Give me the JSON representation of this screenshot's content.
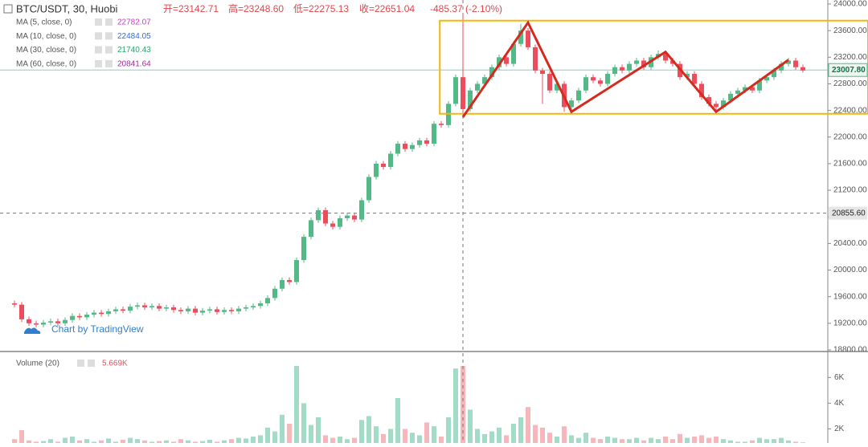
{
  "chart_data": {
    "type": "candlestick",
    "symbol": "BTC/USDT, 30, Huobi",
    "ohlc_legend": [
      "开=23142.71",
      "高=23248.60",
      "低=22275.13",
      "收=22651.04",
      "-485.37 (-2.10%)"
    ],
    "indicators": [
      {
        "name": "MA (5, close, 0)",
        "value_label": "22782.07",
        "color": "#c23fc0"
      },
      {
        "name": "MA (10, close, 0)",
        "value_label": "22484.05",
        "color": "#2f6fd6"
      },
      {
        "name": "MA (30, close, 0)",
        "value_label": "21740.43",
        "color": "#2ea66f"
      },
      {
        "name": "MA (60, close, 0)",
        "value_label": "20841.64",
        "color": "#9c2e9c"
      }
    ],
    "watermark": "Chart by TradingView",
    "up_color": "#53b987",
    "down_color": "#eb4d5c",
    "ohlc": [
      [
        19500,
        19540,
        19440,
        19480
      ],
      [
        19480,
        19520,
        19220,
        19260
      ],
      [
        19260,
        19300,
        19160,
        19200
      ],
      [
        19200,
        19240,
        19140,
        19180
      ],
      [
        19180,
        19250,
        19140,
        19210
      ],
      [
        19210,
        19270,
        19170,
        19230
      ],
      [
        19230,
        19270,
        19160,
        19200
      ],
      [
        19200,
        19290,
        19160,
        19250
      ],
      [
        19250,
        19350,
        19210,
        19310
      ],
      [
        19310,
        19350,
        19250,
        19290
      ],
      [
        19290,
        19370,
        19250,
        19330
      ],
      [
        19330,
        19400,
        19290,
        19360
      ],
      [
        19360,
        19400,
        19300,
        19340
      ],
      [
        19340,
        19420,
        19300,
        19380
      ],
      [
        19380,
        19450,
        19340,
        19410
      ],
      [
        19410,
        19450,
        19350,
        19390
      ],
      [
        19390,
        19490,
        19350,
        19450
      ],
      [
        19450,
        19510,
        19410,
        19470
      ],
      [
        19470,
        19510,
        19400,
        19440
      ],
      [
        19440,
        19500,
        19400,
        19460
      ],
      [
        19460,
        19500,
        19380,
        19420
      ],
      [
        19420,
        19480,
        19380,
        19440
      ],
      [
        19440,
        19480,
        19360,
        19400
      ],
      [
        19400,
        19440,
        19340,
        19380
      ],
      [
        19380,
        19460,
        19340,
        19420
      ],
      [
        19420,
        19460,
        19320,
        19360
      ],
      [
        19360,
        19430,
        19320,
        19390
      ],
      [
        19390,
        19450,
        19350,
        19410
      ],
      [
        19410,
        19450,
        19330,
        19370
      ],
      [
        19370,
        19440,
        19330,
        19400
      ],
      [
        19400,
        19440,
        19340,
        19380
      ],
      [
        19380,
        19460,
        19340,
        19420
      ],
      [
        19420,
        19480,
        19380,
        19440
      ],
      [
        19440,
        19500,
        19400,
        19460
      ],
      [
        19460,
        19540,
        19420,
        19500
      ],
      [
        19500,
        19620,
        19460,
        19580
      ],
      [
        19580,
        19760,
        19540,
        19720
      ],
      [
        19720,
        19890,
        19680,
        19850
      ],
      [
        19850,
        19890,
        19780,
        19820
      ],
      [
        19820,
        20190,
        19780,
        20150
      ],
      [
        20150,
        20540,
        20110,
        20500
      ],
      [
        20500,
        20790,
        20460,
        20750
      ],
      [
        20750,
        20940,
        20710,
        20900
      ],
      [
        20900,
        20940,
        20660,
        20700
      ],
      [
        20700,
        20740,
        20610,
        20650
      ],
      [
        20650,
        20820,
        20610,
        20780
      ],
      [
        20780,
        20860,
        20740,
        20820
      ],
      [
        20820,
        20860,
        20720,
        20760
      ],
      [
        20760,
        21090,
        20720,
        21050
      ],
      [
        21050,
        21440,
        21010,
        21400
      ],
      [
        21400,
        21640,
        21360,
        21600
      ],
      [
        21600,
        21640,
        21510,
        21550
      ],
      [
        21550,
        21790,
        21510,
        21750
      ],
      [
        21750,
        21940,
        21710,
        21900
      ],
      [
        21900,
        21940,
        21780,
        21820
      ],
      [
        21820,
        21920,
        21780,
        21880
      ],
      [
        21880,
        21990,
        21840,
        21950
      ],
      [
        21950,
        21990,
        21860,
        21900
      ],
      [
        21900,
        22240,
        21860,
        22200
      ],
      [
        22200,
        22240,
        22140,
        22180
      ],
      [
        22180,
        22540,
        22140,
        22500
      ],
      [
        22500,
        22940,
        22460,
        22900
      ],
      [
        22900,
        23850,
        22300,
        22420
      ],
      [
        22420,
        22740,
        22380,
        22700
      ],
      [
        22700,
        22840,
        22660,
        22800
      ],
      [
        22800,
        22940,
        22760,
        22900
      ],
      [
        22900,
        23090,
        22860,
        23050
      ],
      [
        23050,
        23240,
        23010,
        23200
      ],
      [
        23200,
        23240,
        23060,
        23100
      ],
      [
        23100,
        23440,
        23060,
        23400
      ],
      [
        23400,
        23700,
        23360,
        23600
      ],
      [
        23600,
        23640,
        23310,
        23350
      ],
      [
        23350,
        23390,
        22960,
        23000
      ],
      [
        23000,
        23040,
        22500,
        22950
      ],
      [
        22950,
        22990,
        22660,
        22700
      ],
      [
        22700,
        22840,
        22660,
        22800
      ],
      [
        22800,
        22840,
        22380,
        22450
      ],
      [
        22450,
        22590,
        22410,
        22550
      ],
      [
        22550,
        22740,
        22510,
        22700
      ],
      [
        22700,
        22940,
        22660,
        22900
      ],
      [
        22900,
        22940,
        22810,
        22850
      ],
      [
        22850,
        22890,
        22760,
        22800
      ],
      [
        22800,
        22990,
        22760,
        22950
      ],
      [
        22950,
        23090,
        22910,
        23050
      ],
      [
        23050,
        23090,
        22960,
        23000
      ],
      [
        23000,
        23140,
        22960,
        23100
      ],
      [
        23100,
        23190,
        23060,
        23150
      ],
      [
        23150,
        23190,
        23010,
        23050
      ],
      [
        23050,
        23240,
        23010,
        23200
      ],
      [
        23200,
        23300,
        23160,
        23250
      ],
      [
        23250,
        23290,
        23110,
        23150
      ],
      [
        23150,
        23190,
        23060,
        23100
      ],
      [
        23100,
        23140,
        22860,
        22900
      ],
      [
        22900,
        22990,
        22860,
        22950
      ],
      [
        22950,
        22990,
        22760,
        22800
      ],
      [
        22800,
        22840,
        22560,
        22600
      ],
      [
        22600,
        22640,
        22460,
        22500
      ],
      [
        22500,
        22540,
        22380,
        22450
      ],
      [
        22450,
        22590,
        22410,
        22550
      ],
      [
        22550,
        22690,
        22510,
        22650
      ],
      [
        22650,
        22740,
        22610,
        22700
      ],
      [
        22700,
        22790,
        22660,
        22750
      ],
      [
        22750,
        22790,
        22660,
        22700
      ],
      [
        22700,
        22890,
        22660,
        22850
      ],
      [
        22850,
        22940,
        22810,
        22900
      ],
      [
        22900,
        23040,
        22860,
        23000
      ],
      [
        23000,
        23140,
        22960,
        23100
      ],
      [
        23100,
        23190,
        23060,
        23150
      ],
      [
        23150,
        23190,
        23010,
        23050
      ],
      [
        23050,
        23090,
        22970,
        23000
      ]
    ],
    "ylim": [
      18800,
      24000
    ],
    "yticks": [
      {
        "value": 18800,
        "label": "18800.00"
      },
      {
        "value": 19200,
        "label": "19200.00"
      },
      {
        "value": 19600,
        "label": "19600.00"
      },
      {
        "value": 20000,
        "label": "20000.00"
      },
      {
        "value": 20400,
        "label": "20400.00"
      },
      {
        "value": 20800,
        "label": "20800.00"
      },
      {
        "value": 21200,
        "label": "21200.00"
      },
      {
        "value": 21600,
        "label": "21600.00"
      },
      {
        "value": 22000,
        "label": "22000.00"
      },
      {
        "value": 22400,
        "label": "22400.00"
      },
      {
        "value": 22800,
        "label": "22800.00"
      },
      {
        "value": 23200,
        "label": "23200.00"
      },
      {
        "value": 23600,
        "label": "23600.00"
      },
      {
        "value": 24000,
        "label": "24000.00"
      }
    ],
    "last_price": {
      "value": 23007.8,
      "label": "23007.80",
      "color": "#53b987"
    },
    "crosshair": {
      "value": 20855.6,
      "label": "20855.60",
      "index": 62
    },
    "drawings": {
      "box": {
        "x": [
          58.8,
          118
        ],
        "y": [
          22350,
          23750
        ],
        "color": "#f2b807"
      },
      "zigzag": {
        "color": "#d42a1f",
        "points": [
          [
            62,
            22300
          ],
          [
            71,
            23720
          ],
          [
            77,
            22380
          ],
          [
            90,
            23280
          ],
          [
            97,
            22380
          ],
          [
            107,
            23160
          ]
        ]
      }
    },
    "volume": {
      "name": "Volume (20)",
      "value_label": "5.669K",
      "up_color": "#a3dcc6",
      "down_color": "#f7b6ba",
      "ylim": [
        900,
        7900
      ],
      "yticks": [
        {
          "value": 2000,
          "label": "2K"
        },
        {
          "value": 4000,
          "label": "4K"
        },
        {
          "value": 6000,
          "label": "6K"
        }
      ],
      "values": [
        1200,
        1900,
        1100,
        1000,
        1050,
        1200,
        1000,
        1300,
        1400,
        1100,
        1200,
        1000,
        1100,
        1250,
        1000,
        1150,
        1300,
        1200,
        1100,
        1000,
        1050,
        1100,
        1000,
        1200,
        1100,
        1000,
        1050,
        1150,
        1000,
        1100,
        1200,
        1300,
        1250,
        1400,
        1500,
        2100,
        1800,
        3100,
        2400,
        6900,
        4000,
        2300,
        2900,
        1500,
        1300,
        1400,
        1200,
        1300,
        2700,
        3000,
        2200,
        1600,
        2000,
        4400,
        2000,
        1700,
        1500,
        2500,
        2200,
        1400,
        2900,
        6700,
        6900,
        3500,
        2000,
        1600,
        1800,
        2100,
        1500,
        2400,
        2900,
        3700,
        2300,
        2100,
        1700,
        1400,
        2200,
        1500,
        1300,
        1700,
        1300,
        1200,
        1400,
        1300,
        1200,
        1200,
        1300,
        1100,
        1300,
        1200,
        1400,
        1200,
        1600,
        1300,
        1400,
        1500,
        1300,
        1400,
        1200,
        1100,
        1000,
        1000,
        1100,
        1300,
        1200,
        1200,
        1300,
        1100,
        1000,
        950
      ]
    }
  }
}
